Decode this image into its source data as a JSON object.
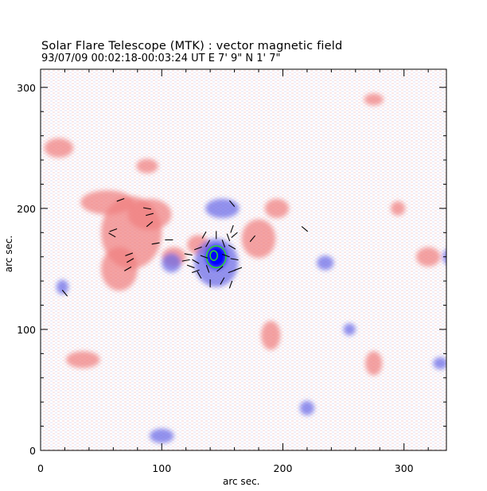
{
  "chart_data": {
    "type": "heatmap",
    "title": "Solar Flare Telescope (MTK) : vector magnetic field",
    "subtitle": "93/07/09  00:02:18-00:03:24 UT     E 7' 9\"  N 1' 7\"",
    "xlabel": "arc sec.",
    "ylabel": "arc sec.",
    "xlim": [
      0,
      335
    ],
    "ylim": [
      0,
      315
    ],
    "xticks": [
      0,
      100,
      200,
      300
    ],
    "yticks": [
      0,
      100,
      200,
      300
    ],
    "x_tick_labels": [
      "0",
      "100",
      "200",
      "300"
    ],
    "y_tick_labels": [
      "0",
      "100",
      "200",
      "300"
    ],
    "colors": {
      "positive": "#f08080",
      "negative": "#6a6ae8",
      "umbra": "#0000ff",
      "contour": "#2bd62b",
      "vectors": "#000000",
      "background": "#ffffff"
    },
    "regions": [
      {
        "polarity": "positive",
        "x": 90,
        "y": 195,
        "rx": 18,
        "ry": 13
      },
      {
        "polarity": "positive",
        "x": 75,
        "y": 180,
        "rx": 25,
        "ry": 30
      },
      {
        "polarity": "positive",
        "x": 55,
        "y": 205,
        "rx": 22,
        "ry": 10
      },
      {
        "polarity": "positive",
        "x": 65,
        "y": 150,
        "rx": 15,
        "ry": 18
      },
      {
        "polarity": "positive",
        "x": 110,
        "y": 160,
        "rx": 10,
        "ry": 8
      },
      {
        "polarity": "positive",
        "x": 130,
        "y": 170,
        "rx": 9,
        "ry": 8
      },
      {
        "polarity": "positive",
        "x": 180,
        "y": 175,
        "rx": 14,
        "ry": 16
      },
      {
        "polarity": "positive",
        "x": 195,
        "y": 200,
        "rx": 10,
        "ry": 8
      },
      {
        "polarity": "positive",
        "x": 15,
        "y": 250,
        "rx": 12,
        "ry": 8
      },
      {
        "polarity": "positive",
        "x": 88,
        "y": 235,
        "rx": 9,
        "ry": 6
      },
      {
        "polarity": "positive",
        "x": 190,
        "y": 95,
        "rx": 8,
        "ry": 12
      },
      {
        "polarity": "positive",
        "x": 275,
        "y": 72,
        "rx": 7,
        "ry": 10
      },
      {
        "polarity": "positive",
        "x": 35,
        "y": 75,
        "rx": 14,
        "ry": 7
      },
      {
        "polarity": "positive",
        "x": 275,
        "y": 290,
        "rx": 8,
        "ry": 5
      },
      {
        "polarity": "positive",
        "x": 295,
        "y": 200,
        "rx": 6,
        "ry": 6
      },
      {
        "polarity": "positive",
        "x": 320,
        "y": 160,
        "rx": 10,
        "ry": 8
      },
      {
        "polarity": "negative",
        "x": 145,
        "y": 155,
        "rx": 18,
        "ry": 20
      },
      {
        "polarity": "negative",
        "x": 150,
        "y": 200,
        "rx": 14,
        "ry": 8
      },
      {
        "polarity": "negative",
        "x": 108,
        "y": 155,
        "rx": 8,
        "ry": 8
      },
      {
        "polarity": "negative",
        "x": 235,
        "y": 155,
        "rx": 7,
        "ry": 6
      },
      {
        "polarity": "negative",
        "x": 18,
        "y": 135,
        "rx": 5,
        "ry": 6
      },
      {
        "polarity": "negative",
        "x": 255,
        "y": 100,
        "rx": 5,
        "ry": 5
      },
      {
        "polarity": "negative",
        "x": 100,
        "y": 12,
        "rx": 10,
        "ry": 6
      },
      {
        "polarity": "negative",
        "x": 220,
        "y": 35,
        "rx": 6,
        "ry": 6
      },
      {
        "polarity": "negative",
        "x": 330,
        "y": 72,
        "rx": 6,
        "ry": 5
      },
      {
        "polarity": "negative",
        "x": 340,
        "y": 160,
        "rx": 8,
        "ry": 8
      },
      {
        "polarity": "umbra",
        "x": 145,
        "y": 160,
        "rx": 9,
        "ry": 10
      }
    ],
    "contours": [
      {
        "x": 145,
        "y": 160,
        "rx": 8,
        "ry": 9
      },
      {
        "x": 143,
        "y": 161,
        "rx": 3,
        "ry": 4
      }
    ],
    "vectors": [
      {
        "x": 66,
        "y": 207,
        "angle": 20
      },
      {
        "x": 88,
        "y": 200,
        "angle": -10
      },
      {
        "x": 90,
        "y": 195,
        "angle": 15
      },
      {
        "x": 60,
        "y": 182,
        "angle": 20
      },
      {
        "x": 59,
        "y": 178,
        "angle": -30
      },
      {
        "x": 90,
        "y": 187,
        "angle": 40
      },
      {
        "x": 73,
        "y": 162,
        "angle": 20
      },
      {
        "x": 74,
        "y": 157,
        "angle": 30
      },
      {
        "x": 72,
        "y": 150,
        "angle": 30
      },
      {
        "x": 95,
        "y": 171,
        "angle": 10
      },
      {
        "x": 20,
        "y": 130,
        "angle": -50
      },
      {
        "x": 135,
        "y": 178,
        "angle": 60
      },
      {
        "x": 145,
        "y": 178,
        "angle": 90
      },
      {
        "x": 155,
        "y": 176,
        "angle": 110
      },
      {
        "x": 158,
        "y": 168,
        "angle": 150
      },
      {
        "x": 160,
        "y": 158,
        "angle": 170
      },
      {
        "x": 158,
        "y": 148,
        "angle": 200
      },
      {
        "x": 150,
        "y": 140,
        "angle": 240
      },
      {
        "x": 140,
        "y": 138,
        "angle": 270
      },
      {
        "x": 131,
        "y": 145,
        "angle": 300
      },
      {
        "x": 128,
        "y": 156,
        "angle": 330
      },
      {
        "x": 130,
        "y": 167,
        "angle": 20
      },
      {
        "x": 138,
        "y": 171,
        "angle": 60
      },
      {
        "x": 151,
        "y": 171,
        "angle": 110
      },
      {
        "x": 153,
        "y": 161,
        "angle": 160
      },
      {
        "x": 148,
        "y": 150,
        "angle": 220
      },
      {
        "x": 138,
        "y": 150,
        "angle": 290
      },
      {
        "x": 135,
        "y": 160,
        "angle": 340
      },
      {
        "x": 122,
        "y": 162,
        "angle": -10
      },
      {
        "x": 120,
        "y": 157,
        "angle": 10
      },
      {
        "x": 124,
        "y": 152,
        "angle": -20
      },
      {
        "x": 128,
        "y": 148,
        "angle": 20
      },
      {
        "x": 175,
        "y": 175,
        "angle": 50
      },
      {
        "x": 218,
        "y": 183,
        "angle": -40
      },
      {
        "x": 158,
        "y": 183,
        "angle": 70
      },
      {
        "x": 160,
        "y": 178,
        "angle": 40
      },
      {
        "x": 157,
        "y": 137,
        "angle": 250
      },
      {
        "x": 163,
        "y": 150,
        "angle": 200
      },
      {
        "x": 158,
        "y": 204,
        "angle": -50
      },
      {
        "x": 106,
        "y": 174,
        "angle": 0
      }
    ]
  }
}
